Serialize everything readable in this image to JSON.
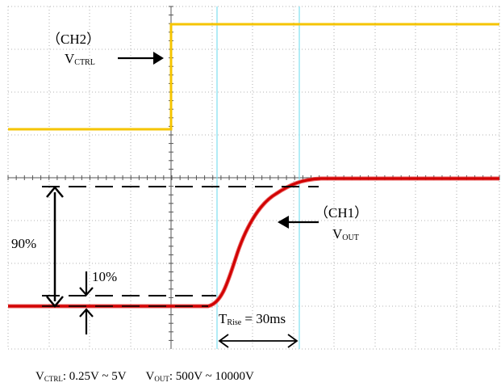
{
  "ch2": {
    "channel": "（CH2）",
    "signal_main": "V",
    "signal_sub": "CTRL",
    "color": "#f5c400"
  },
  "ch1": {
    "channel": "（CH1）",
    "signal_main": "V",
    "signal_sub": "OUT",
    "color": "#dd1010"
  },
  "markers": {
    "high_pct": "90%",
    "low_pct": "10%",
    "rise_main": "T",
    "rise_sub": "Rise",
    "rise_value": " = 30ms"
  },
  "footer": {
    "ctrl_main": "V",
    "ctrl_sub": "CTRL",
    "ctrl_range": ": 0.25V ~ 5V",
    "out_main": "V",
    "out_sub": "OUT",
    "out_range": ": 500V ~ 10000V"
  },
  "colors": {
    "grid": "#9a9a9a",
    "cursor": "#7fdff0",
    "annotation": "#000000"
  }
}
